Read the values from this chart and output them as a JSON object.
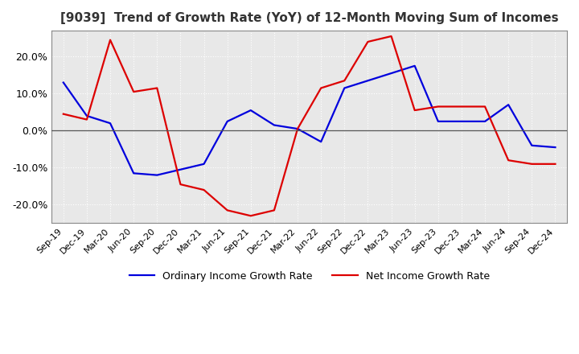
{
  "title": "[9039]  Trend of Growth Rate (YoY) of 12-Month Moving Sum of Incomes",
  "title_fontsize": 11,
  "ylim": [
    -0.25,
    0.27
  ],
  "yticks": [
    -0.2,
    -0.1,
    0.0,
    0.1,
    0.2
  ],
  "background_color": "#ffffff",
  "plot_bg_color": "#e8e8e8",
  "grid_color": "#ffffff",
  "x_labels": [
    "Sep-19",
    "Dec-19",
    "Mar-20",
    "Jun-20",
    "Sep-20",
    "Dec-20",
    "Mar-21",
    "Jun-21",
    "Sep-21",
    "Dec-21",
    "Mar-22",
    "Jun-22",
    "Sep-22",
    "Dec-22",
    "Mar-23",
    "Jun-23",
    "Sep-23",
    "Dec-23",
    "Mar-24",
    "Jun-24",
    "Sep-24",
    "Dec-24"
  ],
  "ordinary_income": [
    0.13,
    0.04,
    0.02,
    -0.115,
    -0.12,
    -0.105,
    -0.09,
    0.025,
    0.055,
    0.015,
    0.005,
    -0.03,
    0.115,
    0.135,
    0.155,
    0.175,
    0.025,
    0.025,
    0.025,
    0.07,
    -0.04,
    -0.045
  ],
  "net_income": [
    0.045,
    0.03,
    0.245,
    0.105,
    0.115,
    -0.145,
    -0.16,
    -0.215,
    -0.23,
    -0.215,
    0.005,
    0.115,
    0.135,
    0.24,
    0.255,
    0.055,
    0.065,
    0.065,
    0.065,
    -0.08,
    -0.09,
    -0.09
  ],
  "ordinary_color": "#0000dd",
  "net_color": "#dd0000",
  "line_width": 1.6
}
